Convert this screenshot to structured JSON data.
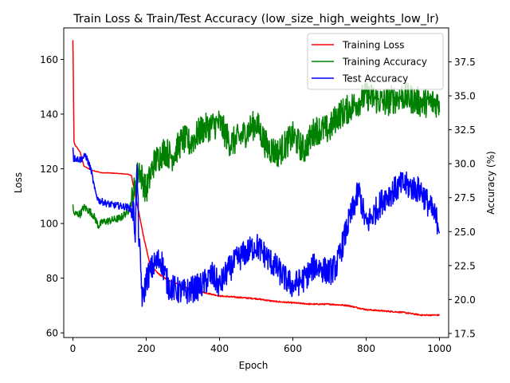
{
  "chart_data": {
    "type": "line",
    "title": "Train Loss & Train/Test Accuracy (low_size_high_weights_low_lr)",
    "xlabel": "Epoch",
    "ylabel_left": "Loss",
    "ylabel_right": "Accuracy (%)",
    "xlim": [
      -25,
      1025
    ],
    "ylim_left": [
      58.3,
      171.5
    ],
    "ylim_right": [
      17.2,
      40.0
    ],
    "xticks": [
      0,
      200,
      400,
      600,
      800,
      1000
    ],
    "yticks_left": [
      60,
      80,
      100,
      120,
      140,
      160
    ],
    "yticks_right": [
      17.5,
      20.0,
      22.5,
      25.0,
      27.5,
      30.0,
      32.5,
      35.0,
      37.5
    ],
    "ytick_labels_right": [
      "17.5",
      "20.0",
      "22.5",
      "25.0",
      "27.5",
      "30.0",
      "32.5",
      "35.0",
      "37.5"
    ],
    "grid": false,
    "legend_position": "top-right",
    "series": [
      {
        "name": "Training Loss",
        "axis": "left",
        "color": "#ff0000",
        "noise": 0.25,
        "x": [
          0,
          3,
          6,
          10,
          20,
          30,
          50,
          80,
          100,
          120,
          150,
          160,
          170,
          180,
          190,
          200,
          210,
          230,
          250,
          300,
          350,
          400,
          450,
          500,
          550,
          600,
          650,
          700,
          750,
          800,
          850,
          900,
          950,
          1000
        ],
        "y": [
          167,
          130,
          128.5,
          128,
          126,
          121,
          119.5,
          118.5,
          118.5,
          118.3,
          118,
          117.5,
          110,
          104,
          97,
          91,
          85,
          82,
          80,
          77,
          75,
          73.5,
          73,
          72.5,
          71.5,
          71,
          70.5,
          70.5,
          70,
          68.5,
          68,
          67.5,
          66.5,
          66.5
        ]
      },
      {
        "name": "Training Accuracy",
        "axis": "right",
        "color": "#008000",
        "noise": 1.1,
        "x": [
          0,
          2,
          5,
          20,
          30,
          50,
          60,
          70,
          80,
          100,
          130,
          150,
          160,
          170,
          180,
          190,
          200,
          220,
          250,
          270,
          300,
          320,
          350,
          400,
          430,
          460,
          500,
          530,
          560,
          600,
          630,
          660,
          700,
          720,
          750,
          800,
          850,
          900,
          950,
          1000
        ],
        "y": [
          27.0,
          26.3,
          26.3,
          26.3,
          26.8,
          26.4,
          26.0,
          25.4,
          25.7,
          25.8,
          26.0,
          26.5,
          27.2,
          28.3,
          29.7,
          28.8,
          28.0,
          30.0,
          31.0,
          30.5,
          31.8,
          31.5,
          32.5,
          33.0,
          31.5,
          32.0,
          33.0,
          31.2,
          30.8,
          32.0,
          31.0,
          32.5,
          32.5,
          33.5,
          34.0,
          35.0,
          34.5,
          35.0,
          34.5,
          34.5
        ]
      },
      {
        "name": "Test Accuracy",
        "axis": "right",
        "color": "#0000ff",
        "noise": 1.0,
        "x": [
          0,
          2,
          5,
          20,
          35,
          50,
          60,
          70,
          100,
          150,
          165,
          170,
          175,
          180,
          190,
          200,
          220,
          240,
          260,
          300,
          350,
          380,
          400,
          420,
          450,
          500,
          550,
          580,
          600,
          630,
          660,
          700,
          720,
          750,
          780,
          800,
          850,
          900,
          950,
          980,
          1000
        ],
        "y": [
          31.2,
          30.3,
          30.4,
          30.3,
          30.6,
          29.5,
          28.0,
          27.3,
          27.0,
          26.8,
          26.5,
          25.0,
          29.5,
          24.5,
          19.8,
          21.5,
          22.5,
          23.0,
          21.0,
          20.5,
          21.0,
          21.8,
          21.0,
          22.0,
          23.0,
          24.0,
          22.5,
          21.5,
          21.0,
          21.5,
          22.5,
          22.0,
          22.5,
          25.5,
          28.0,
          25.5,
          27.5,
          28.5,
          28.0,
          26.5,
          25.5
        ]
      }
    ]
  }
}
